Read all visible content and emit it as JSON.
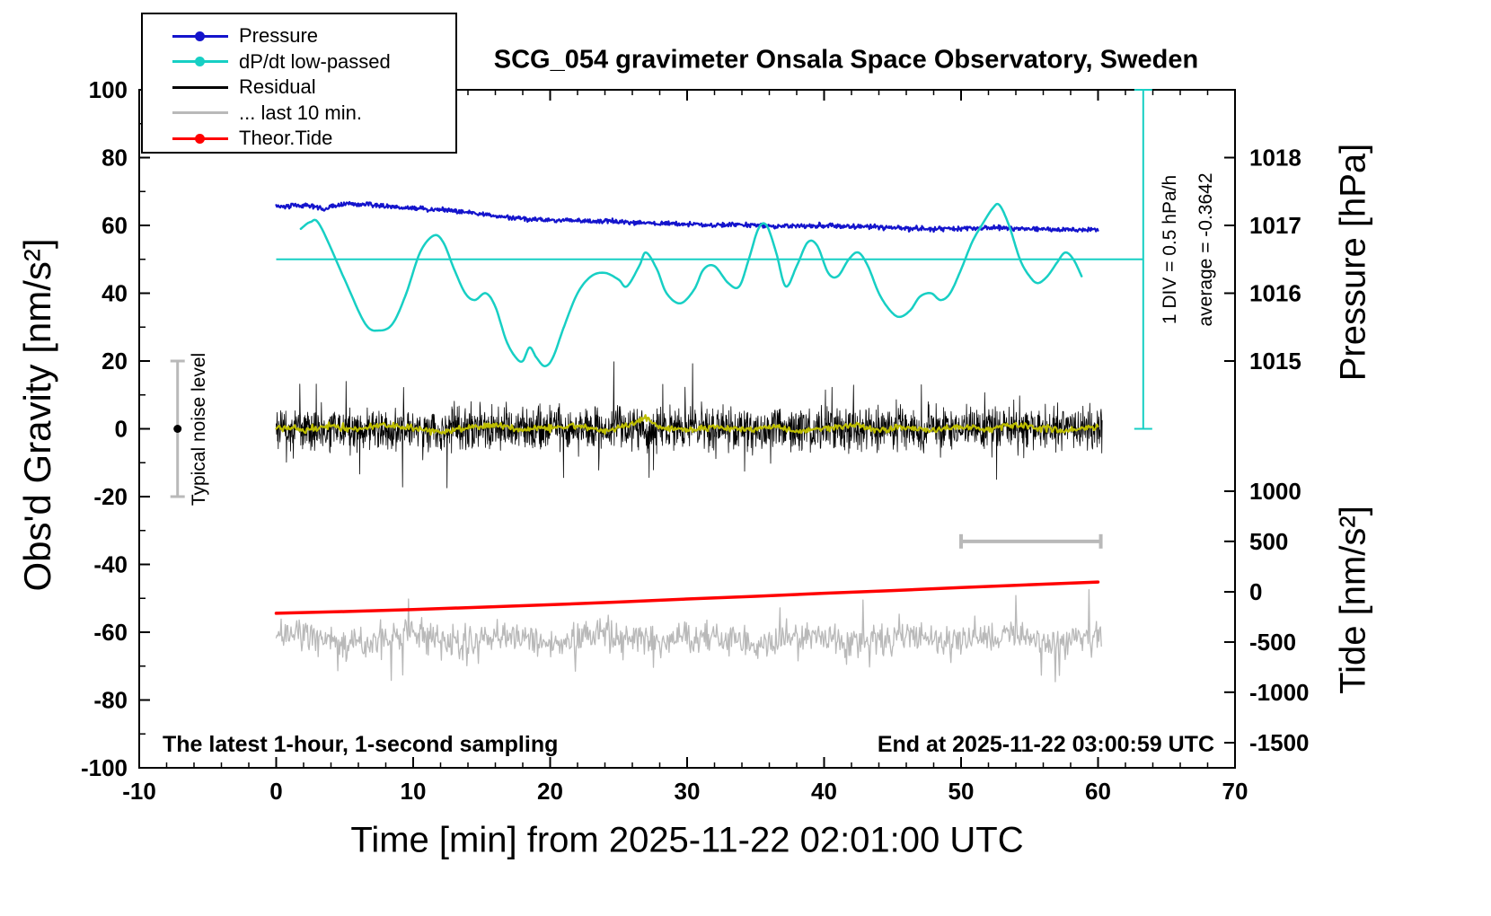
{
  "chart_data": {
    "type": "line",
    "title": "SCG_054 gravimeter Onsala Space Observatory, Sweden",
    "xlabel": "Time [min] from 2025-11-22 02:01:00 UTC",
    "ylabel_left": "Obs'd Gravity [nm/s²]",
    "ylabel_right_pressure": "Pressure [hPa]",
    "ylabel_right_tide": "Tide [nm/s²]",
    "xlim": [
      -10,
      70
    ],
    "ylim_left": [
      -100,
      100
    ],
    "grid": false,
    "legend_position": "top-left",
    "x_ticks": [
      -10,
      0,
      10,
      20,
      30,
      40,
      50,
      60,
      70
    ],
    "y_ticks_left": [
      -100,
      -80,
      -60,
      -40,
      -20,
      0,
      20,
      40,
      60,
      80,
      100
    ],
    "pressure_ticks": [
      {
        "label": "1018",
        "gravity_pos": 80
      },
      {
        "label": "1017",
        "gravity_pos": 60
      },
      {
        "label": "1016",
        "gravity_pos": 40
      },
      {
        "label": "1015",
        "gravity_pos": 20
      }
    ],
    "tide_ticks": [
      {
        "label": "1000",
        "gravity_pos": -18.4
      },
      {
        "label": "500",
        "gravity_pos": -33.2
      },
      {
        "label": "0",
        "gravity_pos": -48.1
      },
      {
        "label": "-500",
        "gravity_pos": -62.9
      },
      {
        "label": "-1000",
        "gravity_pos": -77.7
      },
      {
        "label": "-1500",
        "gravity_pos": -92.6
      }
    ],
    "series": [
      {
        "name": "... last 10 min.",
        "color": "#b9b9b9",
        "style": "noise-band",
        "mean": -62,
        "noise_sd": 2.4,
        "spike_prob": 0.02,
        "spike_extra": [
          4,
          12
        ],
        "spike_down_bias": 0.6,
        "slow_wave": {
          "amp": 1.3,
          "freq": 0.85
        },
        "x_range": [
          0,
          60.3
        ],
        "step": 0.06,
        "linewidth": 1.3
      },
      {
        "name": "Theor.Tide",
        "color": "#ff0000",
        "style": "line",
        "linewidth": 3.5,
        "tide_axis_range": [
          -210,
          95
        ],
        "anchors": [
          [
            0,
            -54.4
          ],
          [
            5,
            -53.9
          ],
          [
            10,
            -53.3
          ],
          [
            15,
            -52.6
          ],
          [
            20,
            -51.9
          ],
          [
            25,
            -51.1
          ],
          [
            30,
            -50.2
          ],
          [
            35,
            -49.4
          ],
          [
            40,
            -48.5
          ],
          [
            45,
            -47.7
          ],
          [
            50,
            -46.8
          ],
          [
            55,
            -46.0
          ],
          [
            60,
            -45.2
          ]
        ]
      },
      {
        "name": "Residual",
        "color": "#000000",
        "style": "noise-band",
        "mean": 0,
        "noise_sd": 3.1,
        "spike_prob": 0.015,
        "spike_extra": [
          5,
          14
        ],
        "spike_down_bias": 0.5,
        "slow_wave": {
          "amp": 0,
          "freq": 1
        },
        "x_range": [
          0,
          60.3
        ],
        "step": 0.025,
        "linewidth": 0.8
      },
      {
        "name": "Residual low-passed",
        "color": "#bdbd00",
        "style": "noisy-line",
        "noise_sd": 0.5,
        "step": 0.08,
        "linewidth": 2.2,
        "anchors": [
          [
            0,
            0.5
          ],
          [
            2,
            -0.5
          ],
          [
            4,
            0.8
          ],
          [
            6,
            -0.3
          ],
          [
            8,
            1.5
          ],
          [
            10,
            0.2
          ],
          [
            12,
            -0.8
          ],
          [
            14,
            0.5
          ],
          [
            16,
            1.2
          ],
          [
            18,
            -0.4
          ],
          [
            20,
            0.3
          ],
          [
            22,
            1.0
          ],
          [
            24,
            -0.6
          ],
          [
            26,
            1.5
          ],
          [
            27,
            3.2
          ],
          [
            28,
            0.5
          ],
          [
            30,
            -0.5
          ],
          [
            32,
            0.8
          ],
          [
            34,
            -0.2
          ],
          [
            36,
            0.6
          ],
          [
            38,
            -0.8
          ],
          [
            40,
            0.4
          ],
          [
            42,
            1.1
          ],
          [
            44,
            -0.3
          ],
          [
            46,
            0.7
          ],
          [
            48,
            -0.5
          ],
          [
            50,
            0.9
          ],
          [
            52,
            -0.2
          ],
          [
            54,
            1.3
          ],
          [
            56,
            0.1
          ],
          [
            58,
            -0.6
          ],
          [
            60,
            0.8
          ]
        ]
      },
      {
        "name": "Pressure",
        "color": "#1414cc",
        "style": "noisy-line",
        "noise_sd": 0.35,
        "step": 0.05,
        "linewidth": 2.2,
        "pressure_hpa_range": [
          1016.9,
          1017.3
        ],
        "anchors": [
          [
            0,
            65.5
          ],
          [
            1,
            65.8
          ],
          [
            2,
            66.0
          ],
          [
            3,
            65.7
          ],
          [
            3.5,
            64.2
          ],
          [
            4,
            65.9
          ],
          [
            5,
            66.2
          ],
          [
            6,
            66.1
          ],
          [
            7,
            66.2
          ],
          [
            8,
            65.6
          ],
          [
            9,
            65.3
          ],
          [
            10,
            65.2
          ],
          [
            11,
            64.8
          ],
          [
            12,
            64.6
          ],
          [
            13,
            64.3
          ],
          [
            14,
            63.9
          ],
          [
            15,
            63.3
          ],
          [
            16,
            62.8
          ],
          [
            17,
            62.3
          ],
          [
            18,
            61.9
          ],
          [
            19,
            61.7
          ],
          [
            20,
            61.6
          ],
          [
            22,
            61.4
          ],
          [
            24,
            61.2
          ],
          [
            26,
            60.9
          ],
          [
            28,
            60.6
          ],
          [
            30,
            60.3
          ],
          [
            32,
            60.1
          ],
          [
            34,
            60.2
          ],
          [
            36,
            59.9
          ],
          [
            38,
            59.8
          ],
          [
            40,
            59.9
          ],
          [
            42,
            59.7
          ],
          [
            44,
            59.5
          ],
          [
            46,
            59.2
          ],
          [
            48,
            58.9
          ],
          [
            50,
            59.1
          ],
          [
            52,
            59.4
          ],
          [
            54,
            59.2
          ],
          [
            56,
            58.9
          ],
          [
            58,
            58.6
          ],
          [
            60,
            58.8
          ]
        ]
      },
      {
        "name": "dP/dt low-passed",
        "color": "#17cfc4",
        "style": "smooth-line",
        "linewidth": 2.5,
        "anchors": [
          [
            1.8,
            59
          ],
          [
            2.5,
            61
          ],
          [
            3.2,
            60
          ],
          [
            5,
            44
          ],
          [
            6.5,
            31
          ],
          [
            7.5,
            29
          ],
          [
            8.5,
            31
          ],
          [
            9.5,
            40
          ],
          [
            10.5,
            52
          ],
          [
            11.5,
            57
          ],
          [
            12.2,
            55
          ],
          [
            13,
            47
          ],
          [
            13.8,
            40
          ],
          [
            14.5,
            38
          ],
          [
            15.3,
            40
          ],
          [
            16,
            36
          ],
          [
            16.8,
            26
          ],
          [
            17.5,
            21
          ],
          [
            18,
            20
          ],
          [
            18.5,
            24
          ],
          [
            19,
            21
          ],
          [
            19.6,
            18.5
          ],
          [
            20.2,
            21
          ],
          [
            21,
            30
          ],
          [
            22,
            40
          ],
          [
            23,
            45
          ],
          [
            24,
            46
          ],
          [
            25,
            44
          ],
          [
            25.6,
            42
          ],
          [
            26.5,
            48
          ],
          [
            27,
            52
          ],
          [
            27.8,
            47
          ],
          [
            28.5,
            40
          ],
          [
            29.5,
            37
          ],
          [
            30.5,
            41
          ],
          [
            31.2,
            47
          ],
          [
            32,
            48
          ],
          [
            33,
            43
          ],
          [
            33.8,
            42
          ],
          [
            34.5,
            50
          ],
          [
            35.2,
            59
          ],
          [
            35.8,
            60
          ],
          [
            36.5,
            52
          ],
          [
            37.2,
            42
          ],
          [
            38,
            48
          ],
          [
            38.8,
            55
          ],
          [
            39.5,
            54
          ],
          [
            40.3,
            46
          ],
          [
            41,
            45
          ],
          [
            41.8,
            50
          ],
          [
            42.5,
            52
          ],
          [
            43.2,
            48
          ],
          [
            44,
            40
          ],
          [
            44.8,
            35
          ],
          [
            45.5,
            33
          ],
          [
            46.3,
            35
          ],
          [
            47,
            39
          ],
          [
            47.8,
            40
          ],
          [
            48.5,
            38
          ],
          [
            49.2,
            40
          ],
          [
            50,
            47
          ],
          [
            50.8,
            55
          ],
          [
            51.5,
            60
          ],
          [
            52.3,
            65
          ],
          [
            52.8,
            66
          ],
          [
            53.5,
            60
          ],
          [
            54.3,
            50
          ],
          [
            55,
            45
          ],
          [
            55.6,
            43
          ],
          [
            56.3,
            45
          ],
          [
            57,
            49
          ],
          [
            57.6,
            52
          ],
          [
            58.2,
            50
          ],
          [
            58.8,
            45
          ]
        ]
      }
    ],
    "reference_marks": {
      "dpdt_average_line": {
        "y_gravity": 50,
        "x_from": 0,
        "x_to": 63.3,
        "color": "#17cfc4"
      },
      "div_scale_bar": {
        "x_min": 63.3,
        "gravity_from": 0,
        "gravity_to": 100,
        "color": "#17cfc4"
      },
      "noise_error_bar": {
        "x_min": -7.2,
        "center": 0,
        "half_extent": 20,
        "color": "#b9b9b9"
      },
      "last10_scale_bar": {
        "x_from": 50,
        "x_to": 60.2,
        "y_gravity": -33.2,
        "color": "#b9b9b9"
      }
    }
  },
  "legend": {
    "items": [
      {
        "label": "Pressure",
        "color": "#1414cc",
        "marker": "dot-line"
      },
      {
        "label": "dP/dt low-passed",
        "color": "#17cfc4",
        "marker": "dot-line"
      },
      {
        "label": "Residual",
        "color": "#000000",
        "marker": "line"
      },
      {
        "label": "... last 10 min.",
        "color": "#b9b9b9",
        "marker": "line"
      },
      {
        "label": "Theor.Tide",
        "color": "#ff0000",
        "marker": "dot-line"
      }
    ]
  },
  "annotations": {
    "div_scale": "1 DIV = 0.5 hPa/h",
    "average": "average = -0.3642",
    "noise_label": "Typical noise level",
    "sampling": "The latest 1-hour, 1-second sampling",
    "end_time": "End at 2025-11-22 03:00:59 UTC"
  },
  "colors": {
    "background": "#ffffff",
    "axis": "#000000",
    "pressure": "#1414cc",
    "dpdt": "#17cfc4",
    "residual": "#000000",
    "residual_last10": "#b9b9b9",
    "residual_lowpass": "#bdbd00",
    "tide": "#ff0000"
  }
}
